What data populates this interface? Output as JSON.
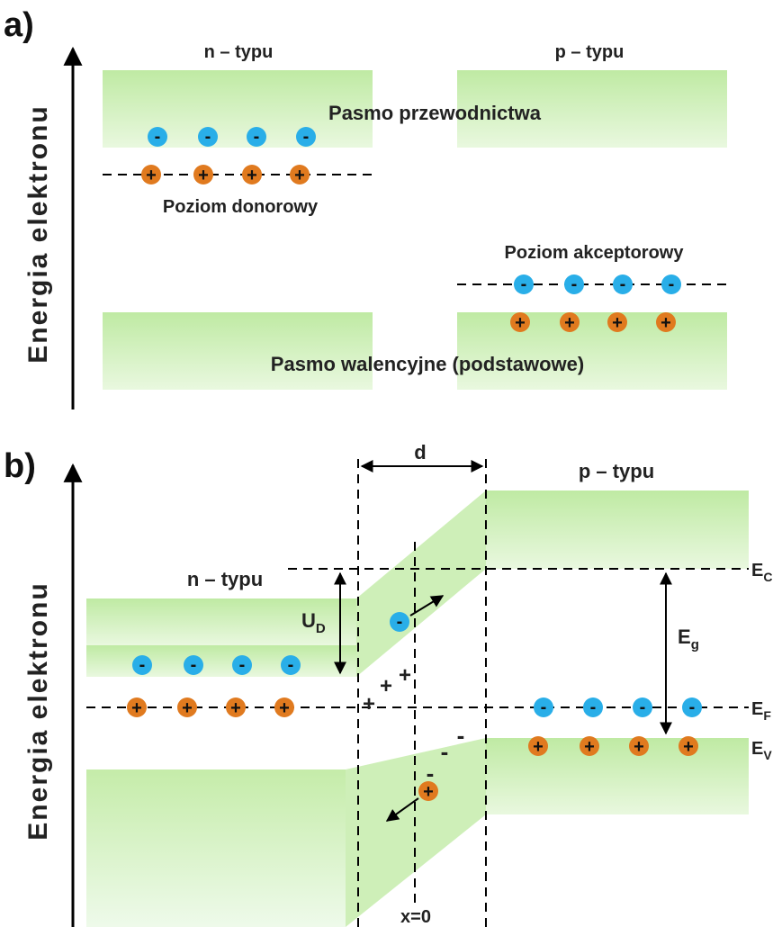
{
  "panel_a": {
    "label": "a)",
    "axis_label": "Energia elektronu",
    "n_type": "n – typu",
    "p_type": "p – typu",
    "conduction_band": "Pasmo przewodnictwa",
    "donor_level": "Poziom donorowy",
    "acceptor_level": "Poziom akceptorowy",
    "valence_band": "Pasmo walencyjne (podstawowe)"
  },
  "panel_b": {
    "label": "b)",
    "axis_label": "Energia elektronu",
    "n_type": "n – typu",
    "p_type": "p – typu",
    "d": "d",
    "ud_main": "U",
    "ud_sub": "D",
    "eg_main": "E",
    "eg_sub": "g",
    "ec_main": "E",
    "ec_sub": "C",
    "ef_main": "E",
    "ef_sub": "F",
    "ev_main": "E",
    "ev_sub": "V",
    "x0": "x=0"
  },
  "signs": {
    "minus": "-",
    "plus": "+"
  },
  "colors": {
    "band": "#c8eeb0",
    "electron": "#29aee8",
    "hole": "#e07a1f"
  }
}
